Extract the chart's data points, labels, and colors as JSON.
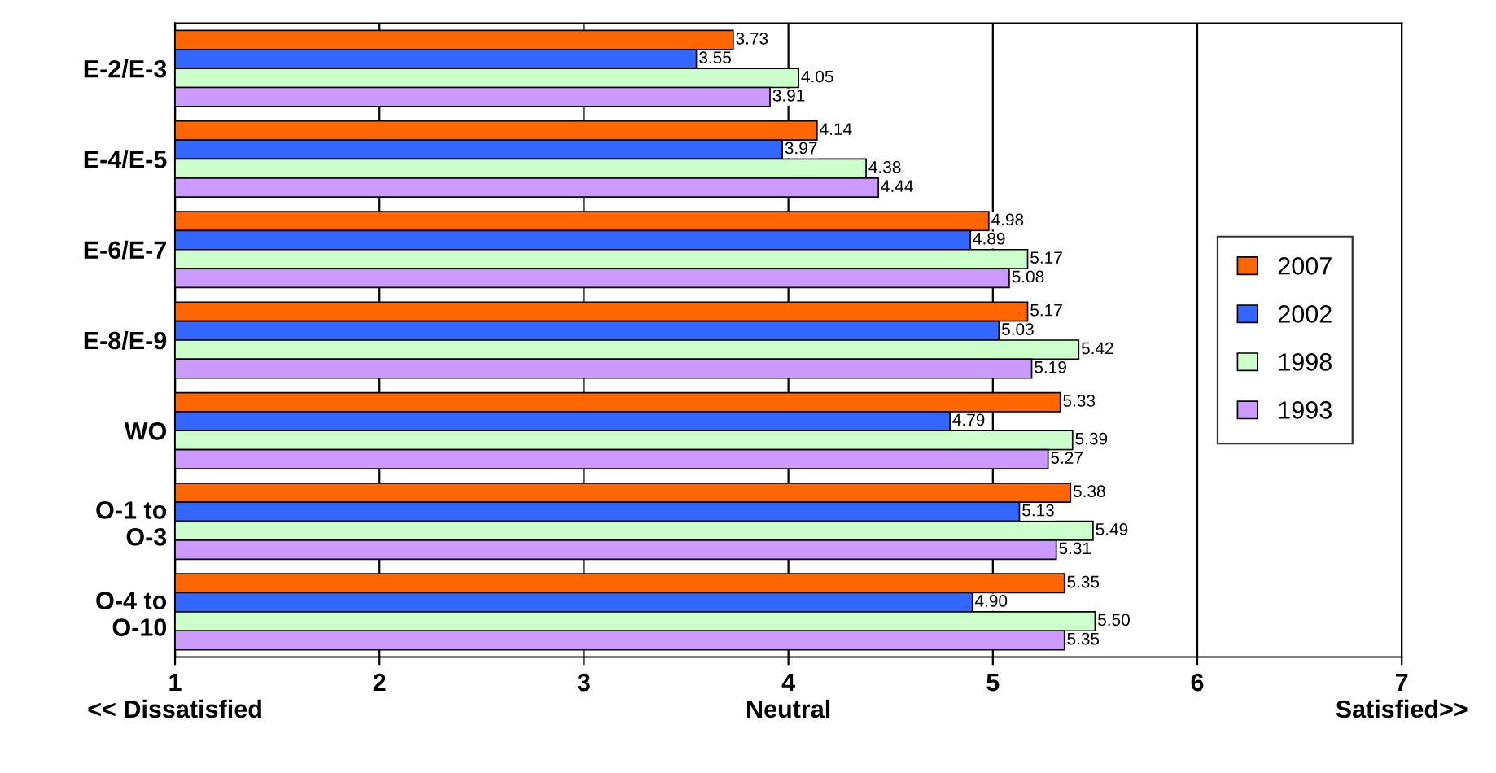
{
  "chart_data": {
    "type": "bar",
    "orientation": "horizontal",
    "categories": [
      "E-2/E-3",
      "E-4/E-5",
      "E-6/E-7",
      "E-8/E-9",
      "WO",
      "O-1 to\nO-3",
      "O-4 to\nO-10"
    ],
    "series": [
      {
        "name": "2007",
        "color": "#ff6600",
        "values": [
          3.73,
          4.14,
          4.98,
          5.17,
          5.33,
          5.38,
          5.35
        ],
        "value_labels": [
          "3.73",
          "4.14",
          "4.98",
          "5.17",
          "5.33",
          "5.38",
          "5.35"
        ]
      },
      {
        "name": "2002",
        "color": "#3366ff",
        "values": [
          3.55,
          3.97,
          4.89,
          5.03,
          4.79,
          5.13,
          4.9
        ],
        "value_labels": [
          "3.55",
          "3.97",
          "4.89",
          "5.03",
          "4.79",
          "5.13",
          "4.90"
        ]
      },
      {
        "name": "1998",
        "color": "#ccffcc",
        "values": [
          4.05,
          4.38,
          5.17,
          5.42,
          5.39,
          5.49,
          5.5
        ],
        "value_labels": [
          "4.05",
          "4.38",
          "5.17",
          "5.42",
          "5.39",
          "5.49",
          "5.50"
        ]
      },
      {
        "name": "1993",
        "color": "#cc99ff",
        "values": [
          3.91,
          4.44,
          5.08,
          5.19,
          5.27,
          5.31,
          5.35
        ],
        "value_labels": [
          "3.91",
          "4.44",
          "5.08",
          "5.19",
          "5.27",
          "5.31",
          "5.35"
        ]
      }
    ],
    "xlim": [
      1,
      7
    ],
    "xticks": [
      {
        "value": 1,
        "label": "1\n<< Dissatisfied"
      },
      2,
      3,
      {
        "value": 4,
        "label": "4\nNeutral"
      },
      5,
      6,
      {
        "value": 7,
        "label": "7\nSatisfied>>"
      }
    ],
    "grid": "x",
    "legend": "right"
  }
}
